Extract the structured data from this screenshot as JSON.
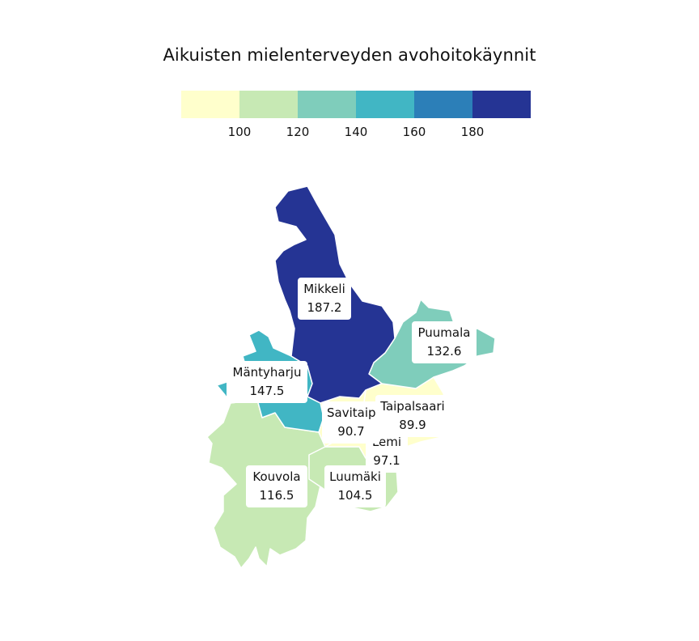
{
  "title": "Aikuisten mielenterveyden avohoitokäynnit",
  "legend": {
    "colors": [
      "#ffffcc",
      "#c7e9b4",
      "#7fcdbb",
      "#41b6c4",
      "#2c7fb8",
      "#253494"
    ],
    "ticks": [
      "100",
      "120",
      "140",
      "160",
      "180"
    ]
  },
  "regions": [
    {
      "name": "Mikkeli",
      "value": "187.2",
      "color": "#253494"
    },
    {
      "name": "Puumala",
      "value": "132.6",
      "color": "#7fcdbb"
    },
    {
      "name": "Mäntyharju",
      "value": "147.5",
      "color": "#41b6c4"
    },
    {
      "name": "Savitaip",
      "value": "90.7",
      "color": "#ffffcc"
    },
    {
      "name": "Taipalsaari",
      "value": "89.9",
      "color": "#ffffcc"
    },
    {
      "name": "Lemi",
      "value": "97.1",
      "color": "#ffffcc"
    },
    {
      "name": "Kouvola",
      "value": "116.5",
      "color": "#c7e9b4"
    },
    {
      "name": "Luumäki",
      "value": "104.5",
      "color": "#c7e9b4"
    }
  ]
}
